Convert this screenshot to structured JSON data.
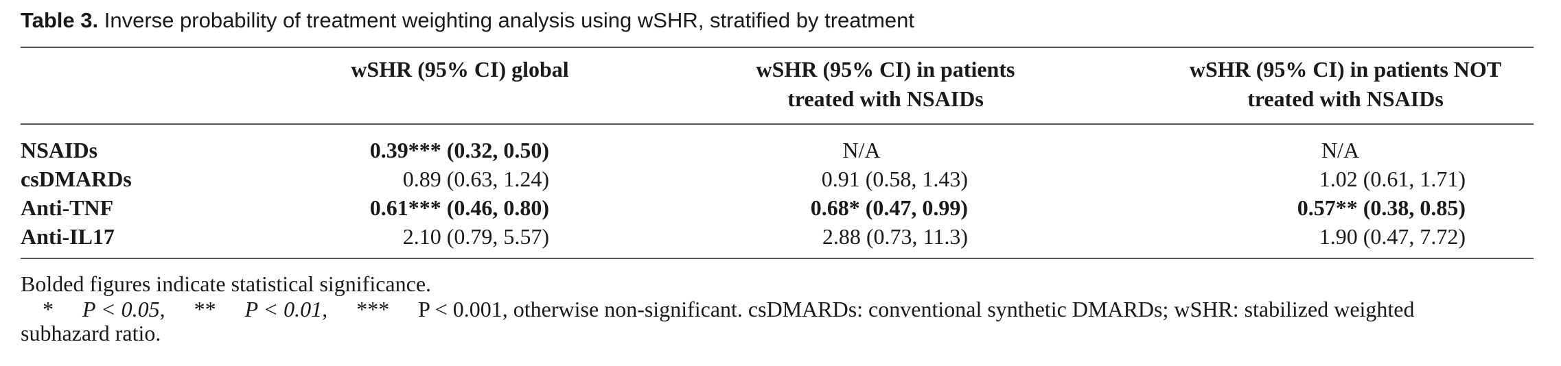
{
  "caption": {
    "label": "Table 3.",
    "text": " Inverse probability of treatment weighting analysis using wSHR, stratified by treatment"
  },
  "columns": {
    "global": "wSHR (95% CI) global",
    "nsaid_line1": "wSHR (95% CI) in patients",
    "nsaid_line2": "treated with NSAIDs",
    "not_nsaid_line1": "wSHR (95% CI) in patients NOT",
    "not_nsaid_line2": "treated with NSAIDs"
  },
  "rows": [
    {
      "label": "NSAIDs",
      "global": "0.39*** (0.32, 0.50)",
      "nsaid": "N/A",
      "not_nsaid": "N/A"
    },
    {
      "label": "csDMARDs",
      "global": "0.89 (0.63, 1.24)",
      "nsaid": "0.91 (0.58, 1.43)",
      "not_nsaid": "1.02 (0.61, 1.71)"
    },
    {
      "label": "Anti-TNF",
      "global": "0.61*** (0.46, 0.80)",
      "nsaid": "0.68* (0.47, 0.99)",
      "not_nsaid": "0.57** (0.38, 0.85)"
    },
    {
      "label": "Anti-IL17",
      "global": "2.10 (0.79, 5.57)",
      "nsaid": "2.88 (0.73, 11.3)",
      "not_nsaid": "1.90 (0.47, 7.72)"
    }
  ],
  "footnotes": {
    "line1": "Bolded figures indicate statistical significance.",
    "star1": "*",
    "p1": "P < 0.05,",
    "star2": "**",
    "p2": "P < 0.01,",
    "star3": "***",
    "p3": "P < 0.001, otherwise non-significant. csDMARDs: conventional synthetic DMARDs; wSHR: stabilized weighted",
    "line3": "subhazard ratio."
  }
}
